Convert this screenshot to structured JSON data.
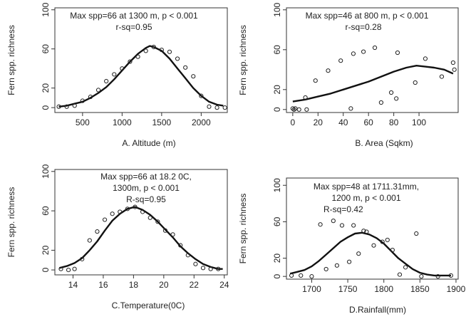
{
  "chart_data": [
    {
      "type": "scatter",
      "xlabel": "A. Altitude (m)",
      "ylabel": "Fern spp. richness",
      "annotation": [
        "Max spp=66 at 1300 m, p < 0.001",
        "r-sq=0.95"
      ],
      "xlim": [
        150,
        2330
      ],
      "ylim": [
        -5,
        102
      ],
      "xticks": [
        500,
        1000,
        1500,
        2000
      ],
      "yticks": [
        0,
        20,
        60,
        100
      ],
      "points": [
        [
          200,
          1
        ],
        [
          300,
          1
        ],
        [
          400,
          2
        ],
        [
          500,
          7
        ],
        [
          600,
          11
        ],
        [
          700,
          18
        ],
        [
          800,
          27
        ],
        [
          900,
          34
        ],
        [
          1000,
          40
        ],
        [
          1100,
          47
        ],
        [
          1200,
          52
        ],
        [
          1300,
          58
        ],
        [
          1400,
          62
        ],
        [
          1500,
          59
        ],
        [
          1600,
          57
        ],
        [
          1700,
          50
        ],
        [
          1800,
          41
        ],
        [
          1900,
          32
        ],
        [
          2000,
          12
        ],
        [
          2100,
          1
        ],
        [
          2200,
          0
        ],
        [
          2300,
          0
        ]
      ],
      "curve": [
        [
          200,
          1
        ],
        [
          300,
          2
        ],
        [
          400,
          4
        ],
        [
          500,
          6
        ],
        [
          600,
          10
        ],
        [
          700,
          15
        ],
        [
          800,
          21
        ],
        [
          900,
          29
        ],
        [
          1000,
          38
        ],
        [
          1100,
          47
        ],
        [
          1200,
          55
        ],
        [
          1300,
          61
        ],
        [
          1350,
          63
        ],
        [
          1400,
          62
        ],
        [
          1500,
          58
        ],
        [
          1600,
          50
        ],
        [
          1700,
          40
        ],
        [
          1800,
          30
        ],
        [
          1900,
          20
        ],
        [
          2000,
          12
        ],
        [
          2100,
          6
        ],
        [
          2200,
          3
        ],
        [
          2280,
          2
        ]
      ]
    },
    {
      "type": "scatter",
      "xlabel": "B. Area (Sqkm)",
      "ylabel": "Fern spp. richness",
      "annotation": [
        "Max spp=46 at 800 m, p < 0.001",
        "r-sq=0.28"
      ],
      "xlim": [
        -5,
        131
      ],
      "ylim": [
        -3,
        102
      ],
      "xticks": [
        0,
        20,
        40,
        60,
        80,
        100
      ],
      "yticks": [
        0,
        20,
        60,
        100
      ],
      "points": [
        [
          0,
          1
        ],
        [
          1,
          0
        ],
        [
          2,
          1
        ],
        [
          5,
          0
        ],
        [
          10,
          12
        ],
        [
          11,
          0
        ],
        [
          18,
          29
        ],
        [
          28,
          39
        ],
        [
          38,
          49
        ],
        [
          46,
          1
        ],
        [
          48,
          56
        ],
        [
          56,
          58
        ],
        [
          65,
          62
        ],
        [
          70,
          7
        ],
        [
          78,
          17
        ],
        [
          82,
          11
        ],
        [
          83,
          57
        ],
        [
          97,
          27
        ],
        [
          105,
          51
        ],
        [
          118,
          33
        ],
        [
          127,
          47
        ],
        [
          128,
          40
        ]
      ],
      "curve": [
        [
          0,
          8
        ],
        [
          10,
          10
        ],
        [
          20,
          13
        ],
        [
          30,
          16
        ],
        [
          40,
          20
        ],
        [
          50,
          24
        ],
        [
          60,
          28
        ],
        [
          70,
          33
        ],
        [
          80,
          38
        ],
        [
          90,
          42
        ],
        [
          98,
          44
        ],
        [
          105,
          43
        ],
        [
          112,
          42
        ],
        [
          120,
          40
        ],
        [
          127,
          36
        ]
      ]
    },
    {
      "type": "scatter",
      "xlabel": "C.Temperature(0C)",
      "ylabel": "Fern spp. richness",
      "annotation": [
        "Max spp=66 at 18.2 0C,",
        "1300m, p < 0.001",
        "R-sq=0.95"
      ],
      "xlim": [
        12.8,
        24.2
      ],
      "ylim": [
        -5,
        102
      ],
      "xticks": [
        14,
        16,
        18,
        20,
        22,
        24
      ],
      "yticks": [
        0,
        20,
        60,
        100
      ],
      "points": [
        [
          13.2,
          1
        ],
        [
          13.7,
          0
        ],
        [
          14.1,
          1
        ],
        [
          14.6,
          11
        ],
        [
          15.1,
          30
        ],
        [
          15.6,
          39
        ],
        [
          16.1,
          51
        ],
        [
          16.6,
          57
        ],
        [
          17.1,
          59
        ],
        [
          17.6,
          62
        ],
        [
          18.1,
          64
        ],
        [
          18.6,
          59
        ],
        [
          19.1,
          53
        ],
        [
          19.6,
          49
        ],
        [
          20.1,
          40
        ],
        [
          20.6,
          36
        ],
        [
          21.1,
          25
        ],
        [
          21.6,
          15
        ],
        [
          22.1,
          6
        ],
        [
          22.6,
          2
        ],
        [
          23.1,
          1
        ],
        [
          23.6,
          1
        ]
      ],
      "curve": [
        [
          13.1,
          2
        ],
        [
          13.6,
          4
        ],
        [
          14.1,
          7
        ],
        [
          14.6,
          12
        ],
        [
          15.1,
          20
        ],
        [
          15.6,
          29
        ],
        [
          16.1,
          40
        ],
        [
          16.6,
          50
        ],
        [
          17.1,
          57
        ],
        [
          17.6,
          62
        ],
        [
          18.1,
          64
        ],
        [
          18.6,
          61
        ],
        [
          19.1,
          56
        ],
        [
          19.6,
          49
        ],
        [
          20.1,
          41
        ],
        [
          20.6,
          33
        ],
        [
          21.1,
          24
        ],
        [
          21.6,
          17
        ],
        [
          22.1,
          11
        ],
        [
          22.6,
          6
        ],
        [
          23.1,
          3
        ],
        [
          23.6,
          1
        ],
        [
          23.9,
          1
        ]
      ]
    },
    {
      "type": "scatter",
      "xlabel": "D.Rainfall(mm)",
      "ylabel": "Fern spp. richness",
      "annotation": [
        "Max spp=48 at 1711.31mm,",
        "1200 m, p < 0.001",
        "R-sq=0.42"
      ],
      "xlim": [
        1665,
        1903
      ],
      "ylim": [
        -3,
        108
      ],
      "xticks": [
        1700,
        1750,
        1800,
        1850,
        1900
      ],
      "yticks": [
        0,
        20,
        60,
        100
      ],
      "points": [
        [
          1672,
          1
        ],
        [
          1685,
          1
        ],
        [
          1700,
          0
        ],
        [
          1712,
          57
        ],
        [
          1720,
          8
        ],
        [
          1730,
          61
        ],
        [
          1735,
          12
        ],
        [
          1742,
          56
        ],
        [
          1752,
          16
        ],
        [
          1758,
          56
        ],
        [
          1765,
          25
        ],
        [
          1772,
          50
        ],
        [
          1776,
          49
        ],
        [
          1786,
          34
        ],
        [
          1798,
          38
        ],
        [
          1805,
          40
        ],
        [
          1812,
          29
        ],
        [
          1822,
          2
        ],
        [
          1830,
          10
        ],
        [
          1845,
          47
        ],
        [
          1852,
          0
        ],
        [
          1875,
          0
        ],
        [
          1893,
          1
        ]
      ],
      "curve": [
        [
          1670,
          3
        ],
        [
          1680,
          5
        ],
        [
          1690,
          7
        ],
        [
          1700,
          11
        ],
        [
          1710,
          17
        ],
        [
          1720,
          24
        ],
        [
          1730,
          31
        ],
        [
          1740,
          38
        ],
        [
          1750,
          43
        ],
        [
          1760,
          47
        ],
        [
          1770,
          48
        ],
        [
          1780,
          46
        ],
        [
          1790,
          42
        ],
        [
          1800,
          36
        ],
        [
          1810,
          28
        ],
        [
          1820,
          20
        ],
        [
          1830,
          14
        ],
        [
          1840,
          8
        ],
        [
          1850,
          4
        ],
        [
          1860,
          2
        ],
        [
          1870,
          1
        ],
        [
          1880,
          1
        ],
        [
          1893,
          1
        ]
      ]
    }
  ]
}
